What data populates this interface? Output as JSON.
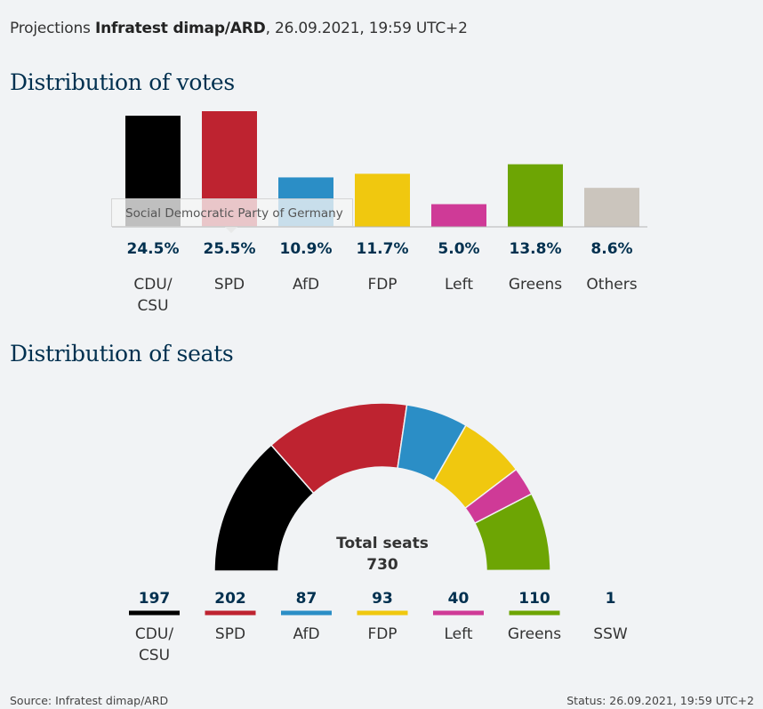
{
  "header": {
    "prefix": "Projections",
    "source_name": "Infratest dimap/ARD",
    "datetime": ", 26.09.2021, 19:59 UTC+2"
  },
  "tooltip": {
    "text": "Social Democratic Party of Germany"
  },
  "footer": {
    "source": "Source: Infratest dimap/ARD",
    "status": "Status: 26.09.2021, 19:59 UTC+2"
  },
  "chart_data": [
    {
      "type": "bar",
      "title": "Distribution of votes",
      "categories": [
        "CDU/\nCSU",
        "SPD",
        "AfD",
        "FDP",
        "Left",
        "Greens",
        "Others"
      ],
      "values": [
        24.5,
        25.5,
        10.9,
        11.7,
        5.0,
        13.8,
        8.6
      ],
      "labels": [
        "24.5%",
        "25.5%",
        "10.9%",
        "11.7%",
        "5.0%",
        "13.8%",
        "8.6%"
      ],
      "colors": [
        "#000000",
        "#be2330",
        "#2b8ec6",
        "#f0c80f",
        "#cf3a97",
        "#6da504",
        "#cbc5bd"
      ],
      "ylim": [
        0,
        25.5
      ],
      "grid": false
    },
    {
      "type": "pie",
      "subtype": "half-donut",
      "title": "Distribution of seats",
      "center_label": "Total seats",
      "total": 730,
      "categories": [
        "CDU/\nCSU",
        "SPD",
        "AfD",
        "FDP",
        "Left",
        "Greens",
        "SSW"
      ],
      "values": [
        197,
        202,
        87,
        93,
        40,
        110,
        1
      ],
      "colors": [
        "#000000",
        "#be2330",
        "#2b8ec6",
        "#f0c80f",
        "#cf3a97",
        "#6da504",
        "#cbc5bd"
      ]
    }
  ]
}
